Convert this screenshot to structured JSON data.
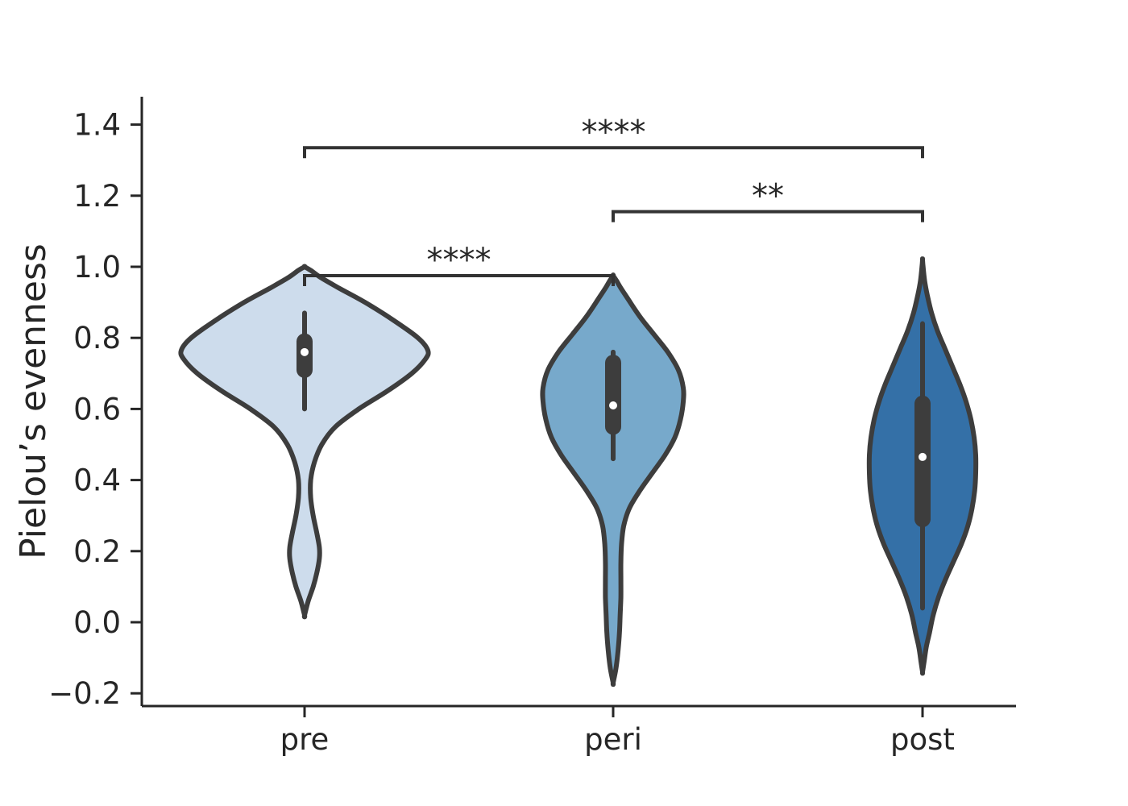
{
  "chart_data": {
    "type": "violin",
    "title": "",
    "xlabel": "",
    "ylabel": "Pielou’s evenness",
    "ylim": [
      -0.23,
      1.47
    ],
    "yticks": [
      -0.2,
      0.0,
      0.2,
      0.4,
      0.6,
      0.8,
      1.0,
      1.2,
      1.4
    ],
    "ytick_labels": [
      "−0.2",
      "0.0",
      "0.2",
      "0.4",
      "0.6",
      "0.8",
      "1.0",
      "1.2",
      "1.4"
    ],
    "categories": [
      "pre",
      "peri",
      "post"
    ],
    "colors": [
      "#cddcec",
      "#77a9cb",
      "#3470a7"
    ],
    "series": [
      {
        "category": "pre",
        "color": "#cddcec",
        "median": 0.76,
        "q1": 0.71,
        "q3": 0.79,
        "whisker_low": 0.6,
        "whisker_high": 0.87,
        "density": [
          [
            0.02,
            0.0
          ],
          [
            0.06,
            0.03
          ],
          [
            0.1,
            0.07
          ],
          [
            0.14,
            0.1
          ],
          [
            0.18,
            0.12
          ],
          [
            0.21,
            0.12
          ],
          [
            0.25,
            0.1
          ],
          [
            0.3,
            0.07
          ],
          [
            0.35,
            0.05
          ],
          [
            0.4,
            0.05
          ],
          [
            0.45,
            0.08
          ],
          [
            0.5,
            0.14
          ],
          [
            0.55,
            0.25
          ],
          [
            0.6,
            0.44
          ],
          [
            0.65,
            0.67
          ],
          [
            0.7,
            0.87
          ],
          [
            0.74,
            0.98
          ],
          [
            0.765,
            1.0
          ],
          [
            0.8,
            0.92
          ],
          [
            0.85,
            0.72
          ],
          [
            0.9,
            0.49
          ],
          [
            0.94,
            0.28
          ],
          [
            0.97,
            0.13
          ],
          [
            0.99,
            0.05
          ],
          [
            1.0,
            0.0
          ]
        ]
      },
      {
        "category": "peri",
        "color": "#77a9cb",
        "median": 0.61,
        "q1": 0.55,
        "q3": 0.73,
        "whisker_low": 0.46,
        "whisker_high": 0.76,
        "density": [
          [
            -0.17,
            0.0
          ],
          [
            -0.13,
            0.04
          ],
          [
            -0.08,
            0.07
          ],
          [
            -0.03,
            0.09
          ],
          [
            0.02,
            0.1
          ],
          [
            0.07,
            0.11
          ],
          [
            0.12,
            0.11
          ],
          [
            0.17,
            0.11
          ],
          [
            0.22,
            0.12
          ],
          [
            0.27,
            0.15
          ],
          [
            0.32,
            0.23
          ],
          [
            0.37,
            0.38
          ],
          [
            0.42,
            0.56
          ],
          [
            0.47,
            0.74
          ],
          [
            0.52,
            0.88
          ],
          [
            0.57,
            0.96
          ],
          [
            0.62,
            1.0
          ],
          [
            0.66,
            1.0
          ],
          [
            0.71,
            0.93
          ],
          [
            0.76,
            0.78
          ],
          [
            0.81,
            0.58
          ],
          [
            0.86,
            0.38
          ],
          [
            0.91,
            0.21
          ],
          [
            0.94,
            0.11
          ],
          [
            0.96,
            0.05
          ],
          [
            0.975,
            0.0
          ]
        ]
      },
      {
        "category": "post",
        "color": "#3470a7",
        "median": 0.465,
        "q1": 0.29,
        "q3": 0.615,
        "whisker_low": 0.04,
        "whisker_high": 0.84,
        "density": [
          [
            -0.14,
            0.0
          ],
          [
            -0.11,
            0.03
          ],
          [
            -0.07,
            0.07
          ],
          [
            -0.03,
            0.13
          ],
          [
            0.02,
            0.2
          ],
          [
            0.07,
            0.3
          ],
          [
            0.12,
            0.43
          ],
          [
            0.17,
            0.58
          ],
          [
            0.22,
            0.73
          ],
          [
            0.27,
            0.85
          ],
          [
            0.32,
            0.93
          ],
          [
            0.37,
            0.98
          ],
          [
            0.42,
            1.0
          ],
          [
            0.47,
            1.0
          ],
          [
            0.52,
            0.97
          ],
          [
            0.57,
            0.91
          ],
          [
            0.62,
            0.82
          ],
          [
            0.67,
            0.7
          ],
          [
            0.72,
            0.56
          ],
          [
            0.77,
            0.42
          ],
          [
            0.82,
            0.28
          ],
          [
            0.87,
            0.17
          ],
          [
            0.92,
            0.09
          ],
          [
            0.96,
            0.04
          ],
          [
            1.0,
            0.01
          ],
          [
            1.02,
            0.0
          ]
        ]
      }
    ],
    "annotations": [
      {
        "from": "pre",
        "to": "peri",
        "y": 0.975,
        "label": "****"
      },
      {
        "from": "peri",
        "to": "post",
        "y": 1.155,
        "label": "**"
      },
      {
        "from": "pre",
        "to": "post",
        "y": 1.335,
        "label": "****"
      }
    ]
  }
}
